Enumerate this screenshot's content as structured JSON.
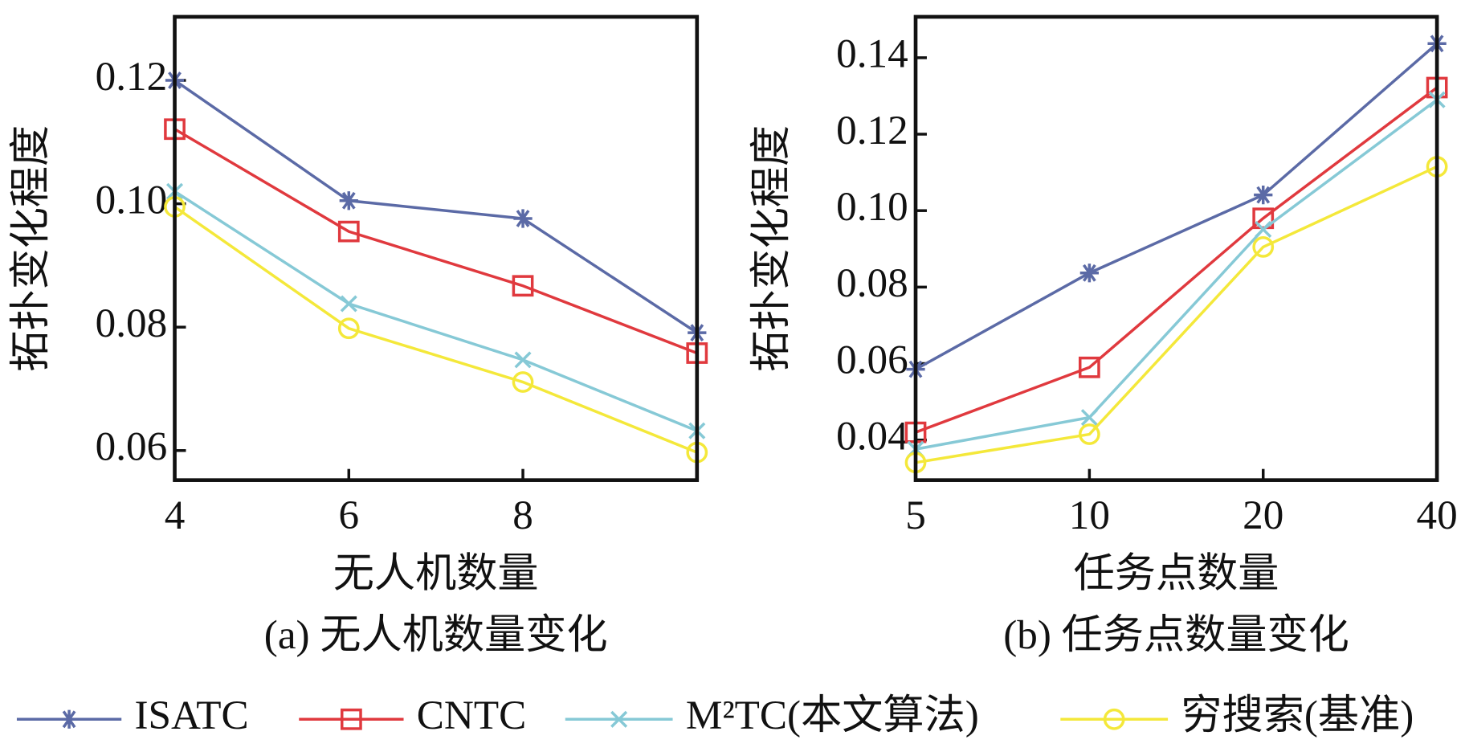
{
  "chart_data": [
    {
      "type": "line",
      "x_label": "无人机数量",
      "y_label": "拓扑变化程度",
      "caption": "(a) 无人机数量变化",
      "x": [
        4,
        6,
        8,
        10
      ],
      "xlim": [
        4,
        10
      ],
      "xticks": [
        4,
        6,
        8
      ],
      "ylim": [
        0.0552,
        0.1303
      ],
      "yticks": [
        0.06,
        0.08,
        {
          "value": 0.1,
          "label": "0.10"
        },
        0.12
      ],
      "series": [
        {
          "name": "ISATC",
          "color": "#5b6aa6",
          "marker": "asterisk",
          "values": [
            0.12,
            0.1005,
            0.0976,
            0.0791
          ]
        },
        {
          "name": "CNTC",
          "color": "#e0393e",
          "marker": "square",
          "values": [
            0.1121,
            0.0955,
            0.0867,
            0.0758
          ]
        },
        {
          "name": "M²TC(本文算法)",
          "color": "#86c9d6",
          "marker": "x",
          "values": [
            0.102,
            0.0838,
            0.0747,
            0.0632
          ]
        },
        {
          "name": "穷搜索(基准)",
          "color": "#f4e83a",
          "marker": "circle",
          "values": [
            0.0995,
            0.0798,
            0.0711,
            0.0597
          ]
        }
      ]
    },
    {
      "type": "line",
      "x_label": "任务点数量",
      "y_label": "拓扑变化程度",
      "caption": "(b) 任务点数量变化",
      "categories": [
        "5",
        "10",
        "20",
        "40"
      ],
      "ylim": [
        0.0295,
        0.1507
      ],
      "yticks": [
        0.04,
        0.06,
        0.08,
        {
          "value": 0.1,
          "label": "0.10"
        },
        0.12,
        0.14
      ],
      "series": [
        {
          "color": "#5b6aa6",
          "marker": "asterisk",
          "values": [
            0.0585,
            0.0837,
            0.1041,
            0.1437
          ]
        },
        {
          "color": "#e0393e",
          "marker": "square",
          "values": [
            0.042,
            0.059,
            0.098,
            0.1322
          ]
        },
        {
          "color": "#86c9d6",
          "marker": "x",
          "values": [
            0.0376,
            0.0459,
            0.0951,
            0.129
          ]
        },
        {
          "color": "#f4e83a",
          "marker": "circle",
          "values": [
            0.0341,
            0.0415,
            0.0905,
            0.1115
          ]
        }
      ]
    }
  ]
}
